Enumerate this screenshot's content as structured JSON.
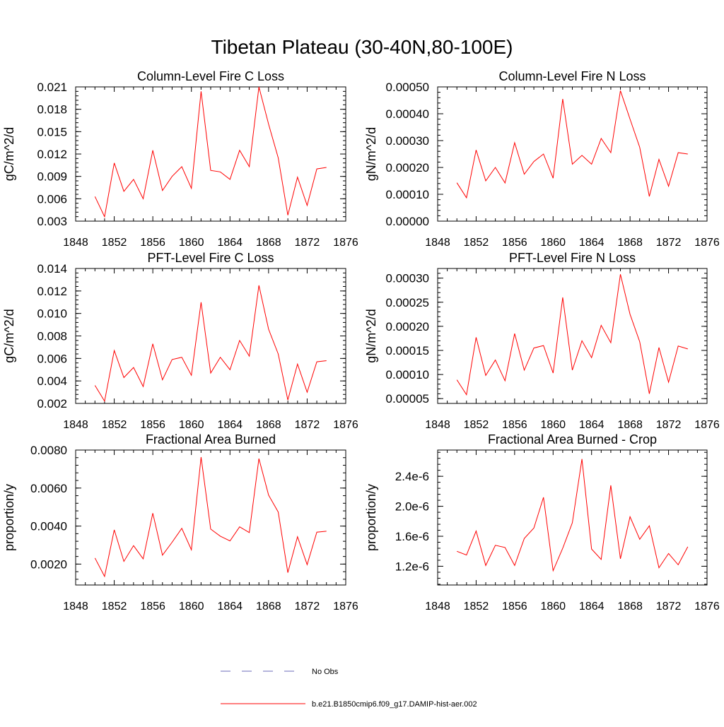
{
  "title": "Tibetan Plateau (30-40N,80-100E)",
  "colors": {
    "model": "#ff0000",
    "obs": "#6b6bb8",
    "axis": "#000000"
  },
  "legend": {
    "obs_label": "No Obs",
    "model_label": "b.e21.B1850cmip6.f09_g17.DAMIP-hist-aer.002"
  },
  "chart_data": [
    {
      "type": "line",
      "title": "Column-Level Fire C Loss",
      "ylabel": "gC/m^2/d",
      "xlim": [
        1848,
        1876
      ],
      "ylim": [
        0.003,
        0.021
      ],
      "xticks": [
        "1848",
        "1852",
        "1856",
        "1860",
        "1864",
        "1868",
        "1872",
        "1876"
      ],
      "yticks": [
        "0.003",
        "0.006",
        "0.009",
        "0.012",
        "0.015",
        "0.018",
        "0.021"
      ],
      "x": [
        1850,
        1851,
        1852,
        1853,
        1854,
        1855,
        1856,
        1857,
        1858,
        1859,
        1860,
        1861,
        1862,
        1863,
        1864,
        1865,
        1866,
        1867,
        1868,
        1869,
        1870,
        1871,
        1872,
        1873,
        1874
      ],
      "values": [
        0.0063,
        0.0036,
        0.0108,
        0.007,
        0.0086,
        0.006,
        0.0125,
        0.0071,
        0.009,
        0.0103,
        0.0074,
        0.0204,
        0.0098,
        0.0096,
        0.0086,
        0.0125,
        0.0103,
        0.021,
        0.016,
        0.0115,
        0.0038,
        0.0089,
        0.0051,
        0.01,
        0.0102
      ]
    },
    {
      "type": "line",
      "title": "Column-Level Fire N Loss",
      "ylabel": "gN/m^2/d",
      "xlim": [
        1848,
        1876
      ],
      "ylim": [
        0.0,
        0.0005
      ],
      "xticks": [
        "1848",
        "1852",
        "1856",
        "1860",
        "1864",
        "1868",
        "1872",
        "1876"
      ],
      "yticks": [
        "0.00000",
        "0.00010",
        "0.00020",
        "0.00030",
        "0.00040",
        "0.00050"
      ],
      "x": [
        1850,
        1851,
        1852,
        1853,
        1854,
        1855,
        1856,
        1857,
        1858,
        1859,
        1860,
        1861,
        1862,
        1863,
        1864,
        1865,
        1866,
        1867,
        1868,
        1869,
        1870,
        1871,
        1872,
        1873,
        1874
      ],
      "values": [
        0.000143,
        8.7e-05,
        0.000265,
        0.00015,
        0.0002,
        0.000142,
        0.000292,
        0.000175,
        0.000222,
        0.00025,
        0.00016,
        0.000455,
        0.000212,
        0.000245,
        0.000212,
        0.000308,
        0.000255,
        0.000486,
        0.00038,
        0.000275,
        9.2e-05,
        0.00023,
        0.00013,
        0.000255,
        0.00025
      ]
    },
    {
      "type": "line",
      "title": "PFT-Level Fire C Loss",
      "ylabel": "gC/m^2/d",
      "xlim": [
        1848,
        1876
      ],
      "ylim": [
        0.002,
        0.014
      ],
      "xticks": [
        "1848",
        "1852",
        "1856",
        "1860",
        "1864",
        "1868",
        "1872",
        "1876"
      ],
      "yticks": [
        "0.002",
        "0.004",
        "0.006",
        "0.008",
        "0.010",
        "0.012",
        "0.014"
      ],
      "x": [
        1850,
        1851,
        1852,
        1853,
        1854,
        1855,
        1856,
        1857,
        1858,
        1859,
        1860,
        1861,
        1862,
        1863,
        1864,
        1865,
        1866,
        1867,
        1868,
        1869,
        1870,
        1871,
        1872,
        1873,
        1874
      ],
      "values": [
        0.0036,
        0.0022,
        0.0067,
        0.0043,
        0.0052,
        0.0035,
        0.0073,
        0.0041,
        0.0059,
        0.0061,
        0.0045,
        0.011,
        0.0047,
        0.0061,
        0.005,
        0.0076,
        0.0062,
        0.0125,
        0.0086,
        0.0064,
        0.0023,
        0.0055,
        0.003,
        0.0057,
        0.0058
      ]
    },
    {
      "type": "line",
      "title": "PFT-Level Fire N Loss",
      "ylabel": "gN/m^2/d",
      "xlim": [
        1848,
        1876
      ],
      "ylim": [
        4e-05,
        0.00032
      ],
      "xticks": [
        "1848",
        "1852",
        "1856",
        "1860",
        "1864",
        "1868",
        "1872",
        "1876"
      ],
      "yticks": [
        "0.00005",
        "0.00010",
        "0.00015",
        "0.00020",
        "0.00025",
        "0.00030"
      ],
      "x": [
        1850,
        1851,
        1852,
        1853,
        1854,
        1855,
        1856,
        1857,
        1858,
        1859,
        1860,
        1861,
        1862,
        1863,
        1864,
        1865,
        1866,
        1867,
        1868,
        1869,
        1870,
        1871,
        1872,
        1873,
        1874
      ],
      "values": [
        8.9e-05,
        5.8e-05,
        0.000177,
        9.8e-05,
        0.00013,
        8.7e-05,
        0.000185,
        0.000109,
        0.000155,
        0.00016,
        0.000103,
        0.00026,
        0.000109,
        0.00017,
        0.000135,
        0.000202,
        0.000166,
        0.000308,
        0.000225,
        0.000168,
        6e-05,
        0.000156,
        8.4e-05,
        0.000159,
        0.000153
      ]
    },
    {
      "type": "line",
      "title": "Fractional Area Burned",
      "ylabel": "proportion/y",
      "xlim": [
        1848,
        1876
      ],
      "ylim": [
        0.0009,
        0.008
      ],
      "xticks": [
        "1848",
        "1852",
        "1856",
        "1860",
        "1864",
        "1868",
        "1872",
        "1876"
      ],
      "yticks": [
        "0.0020",
        "0.0040",
        "0.0060",
        "0.0080"
      ],
      "x": [
        1850,
        1851,
        1852,
        1853,
        1854,
        1855,
        1856,
        1857,
        1858,
        1859,
        1860,
        1861,
        1862,
        1863,
        1864,
        1865,
        1866,
        1867,
        1868,
        1869,
        1870,
        1871,
        1872,
        1873,
        1874
      ],
      "values": [
        0.00232,
        0.00135,
        0.0038,
        0.00214,
        0.00297,
        0.00227,
        0.00468,
        0.00247,
        0.00315,
        0.00388,
        0.00275,
        0.00763,
        0.00384,
        0.00347,
        0.00322,
        0.00396,
        0.00366,
        0.00755,
        0.00563,
        0.00474,
        0.00155,
        0.00344,
        0.00197,
        0.00368,
        0.00373
      ]
    },
    {
      "type": "line",
      "title": "Fractional Area Burned - Crop",
      "ylabel": "proportion/y",
      "xlim": [
        1848,
        1876
      ],
      "ylim": [
        9.5e-07,
        2.75e-06
      ],
      "xticks": [
        "1848",
        "1852",
        "1856",
        "1860",
        "1864",
        "1868",
        "1872",
        "1876"
      ],
      "yticks": [
        "1.2e-6",
        "1.6e-6",
        "2.0e-6",
        "2.4e-6"
      ],
      "x": [
        1850,
        1851,
        1852,
        1853,
        1854,
        1855,
        1856,
        1857,
        1858,
        1859,
        1860,
        1861,
        1862,
        1863,
        1864,
        1865,
        1866,
        1867,
        1868,
        1869,
        1870,
        1871,
        1872,
        1873,
        1874
      ],
      "values": [
        1.4e-06,
        1.35e-06,
        1.67e-06,
        1.21e-06,
        1.48e-06,
        1.45e-06,
        1.21e-06,
        1.57e-06,
        1.71e-06,
        2.12e-06,
        1.14e-06,
        1.44e-06,
        1.78e-06,
        2.63e-06,
        1.43e-06,
        1.29e-06,
        2.28e-06,
        1.3e-06,
        1.86e-06,
        1.56e-06,
        1.74e-06,
        1.18e-06,
        1.37e-06,
        1.22e-06,
        1.46e-06
      ]
    }
  ]
}
